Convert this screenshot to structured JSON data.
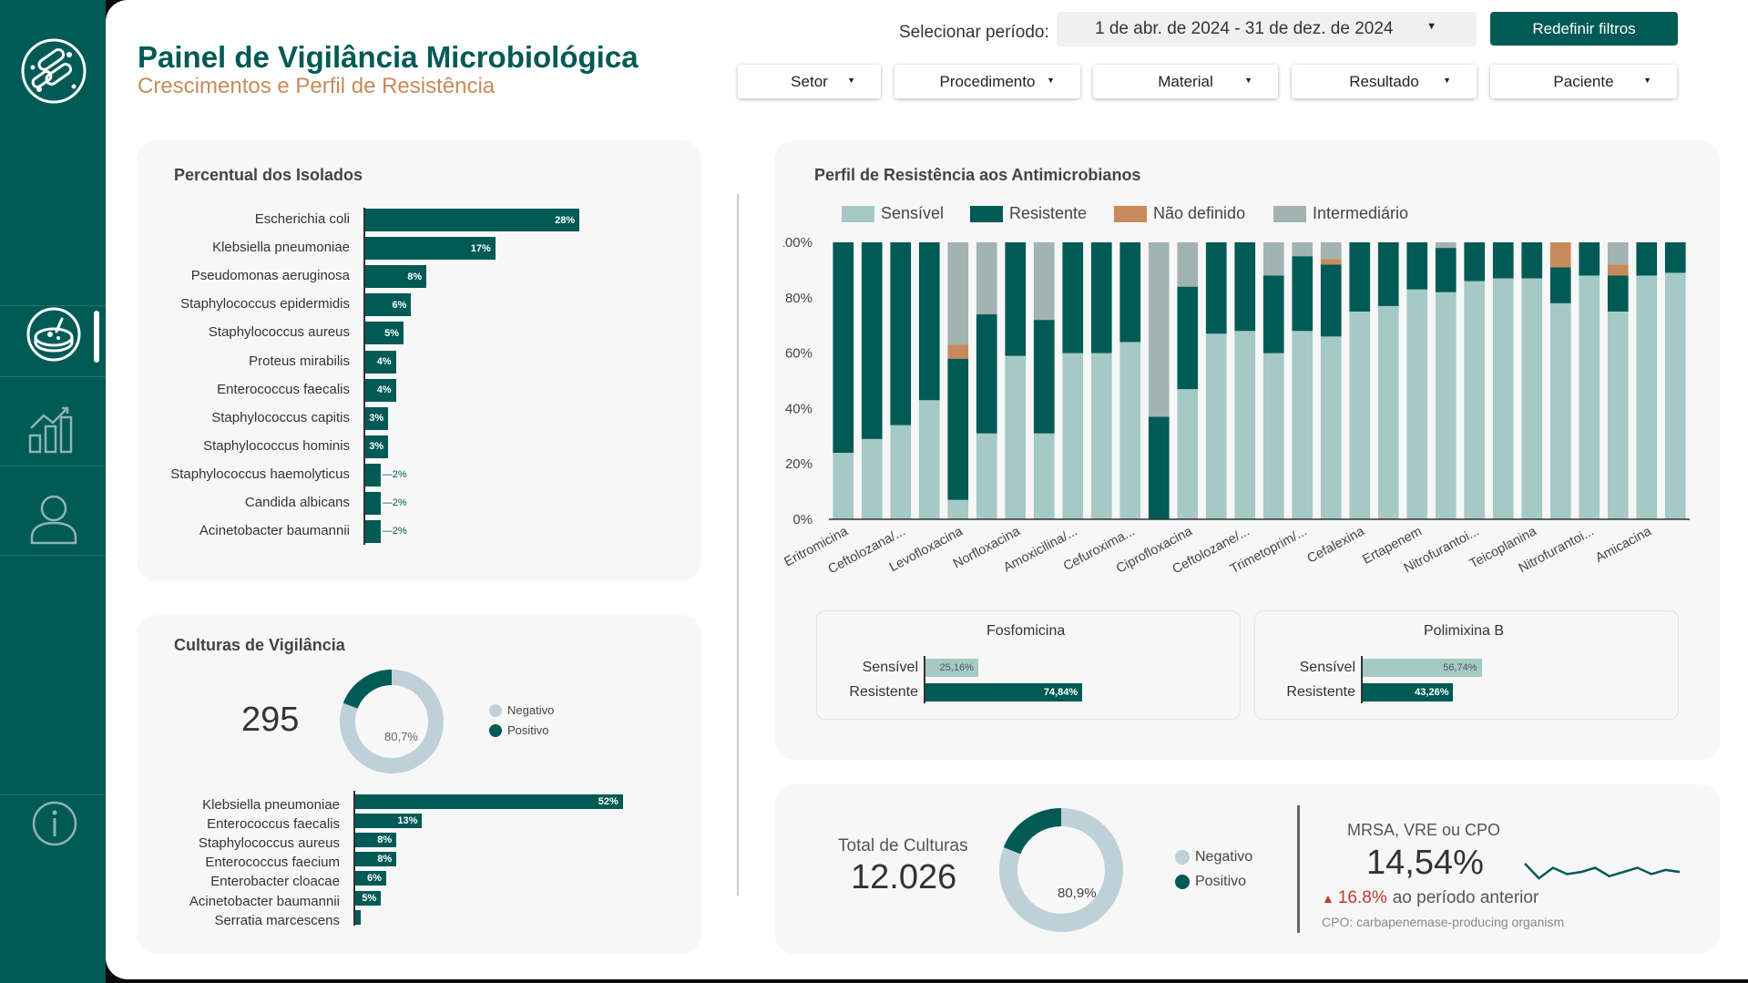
{
  "header": {
    "title": "Painel de Vigilância Microbiológica",
    "subtitle": "Crescimentos e Perfil de Resistência",
    "period_label": "Selecionar período:",
    "period_value": "1 de abr. de 2024 - 31 de dez. de 2024",
    "reset_label": "Redefinir filtros",
    "filters": [
      "Setor",
      "Procedimento",
      "Material",
      "Resultado",
      "Paciente"
    ]
  },
  "sidebar": {
    "icons": [
      "bacteria-logo-icon",
      "petri-dish-icon",
      "bar-chart-icon",
      "user-icon",
      "info-icon"
    ],
    "active": "petri-dish-icon"
  },
  "colors": {
    "primary": "#005a55",
    "sensitive": "#a5c9c5",
    "resistant": "#005a55",
    "undefined": "#c98a5b",
    "intermediate": "#a3b3b1",
    "donut_negative": "#bfd1d8",
    "up_arrow": "#c0392b",
    "subtitle": "#c98a5b"
  },
  "isolates": {
    "title": "Percentual dos Isolados",
    "items": [
      {
        "name": "Escherichia coli",
        "pct": 28,
        "label": "28%"
      },
      {
        "name": "Klebsiella pneumoniae",
        "pct": 17,
        "label": "17%"
      },
      {
        "name": "Pseudomonas aeruginosa",
        "pct": 8,
        "label": "8%"
      },
      {
        "name": "Staphylococcus epidermidis",
        "pct": 6,
        "label": "6%"
      },
      {
        "name": "Staphylococcus aureus",
        "pct": 5,
        "label": "5%"
      },
      {
        "name": "Proteus mirabilis",
        "pct": 4,
        "label": "4%"
      },
      {
        "name": "Enterococcus faecalis",
        "pct": 4,
        "label": "4%"
      },
      {
        "name": "Staphylococcus capitis",
        "pct": 3,
        "label": "3%"
      },
      {
        "name": "Staphylococcus hominis",
        "pct": 3,
        "label": "3%"
      },
      {
        "name": "Staphylococcus haemolyticus",
        "pct": 2,
        "label": "2%"
      },
      {
        "name": "Candida albicans",
        "pct": 2,
        "label": "2%"
      },
      {
        "name": "Acinetobacter baumannii",
        "pct": 2,
        "label": "2%"
      }
    ]
  },
  "surveillance": {
    "title": "Culturas de Vigilância",
    "total": "295",
    "donut_label": "80,7%",
    "negative_pct": 80.7,
    "legend": [
      "Negativo",
      "Positivo"
    ],
    "items": [
      {
        "name": "Klebsiella pneumoniae",
        "pct": 52,
        "label": "52%"
      },
      {
        "name": "Enterococcus faecalis",
        "pct": 13,
        "label": "13%"
      },
      {
        "name": "Staphylococcus aureus",
        "pct": 8,
        "label": "8%"
      },
      {
        "name": "Enterococcus faecium",
        "pct": 8,
        "label": "8%"
      },
      {
        "name": "Enterobacter cloacae",
        "pct": 6,
        "label": "6%"
      },
      {
        "name": "Acinetobacter baumannii",
        "pct": 5,
        "label": "5%"
      },
      {
        "name": "Serratia marcescens",
        "pct": 1,
        "label": ""
      }
    ]
  },
  "resistance": {
    "title": "Perfil de Resistência aos Antimicrobianos",
    "legend": [
      "Sensível",
      "Resistente",
      "Não definido",
      "Intermediário"
    ],
    "x_tick_labels": [
      "Eritromicina",
      "Ceftolozana/...",
      "Levofloxacina",
      "Norfloxacina",
      "Amoxicilina/...",
      "Cefuroxima...",
      "Ciprofloxacina",
      "Ceftolozane/...",
      "Trimetoprim/...",
      "Cefalexina",
      "Ertapenem",
      "Nitrofurantoi...",
      "Teicoplanina",
      "Nitrofurantoi...",
      "Amicacina"
    ],
    "y_tick_labels": [
      "0%",
      "20%",
      "40%",
      "60%",
      "80%",
      "100%"
    ]
  },
  "chart_data": {
    "type": "bar",
    "stacked": true,
    "title": "Perfil de Resistência aos Antimicrobianos",
    "categories": [
      "Eritromicina",
      "",
      "Ceftolozana/...",
      "",
      "Levofloxacina",
      "",
      "Norfloxacina",
      "",
      "Amoxicilina/...",
      "",
      "Cefuroxima...",
      "",
      "Ciprofloxacina",
      "",
      "Ceftolozane/...",
      "",
      "Trimetoprim/...",
      "",
      "Cefalexina",
      "",
      "Ertapenem",
      "",
      "Nitrofurantoi...",
      "",
      "Teicoplanina",
      "",
      "Nitrofurantoi...",
      "",
      "Amicacina",
      ""
    ],
    "ylim": [
      0,
      100
    ],
    "series": [
      {
        "name": "Sensível",
        "values": [
          24,
          29,
          34,
          43,
          7,
          31,
          59,
          31,
          60,
          60,
          64,
          0,
          47,
          67,
          68,
          60,
          68,
          66,
          75,
          77,
          83,
          82,
          86,
          87,
          87,
          78,
          88,
          75,
          88,
          89
        ]
      },
      {
        "name": "Resistente",
        "values": [
          76,
          71,
          66,
          57,
          51,
          43,
          41,
          41,
          40,
          40,
          36,
          37,
          37,
          33,
          32,
          28,
          27,
          26,
          25,
          23,
          17,
          16,
          14,
          13,
          13,
          13,
          12,
          13,
          12,
          11
        ]
      },
      {
        "name": "Não definido",
        "values": [
          0,
          0,
          0,
          0,
          5,
          0,
          0,
          0,
          0,
          0,
          0,
          0,
          0,
          0,
          0,
          0,
          0,
          2,
          0,
          0,
          0,
          0,
          0,
          0,
          0,
          9,
          0,
          4,
          0,
          0
        ]
      },
      {
        "name": "Intermediário",
        "values": [
          0,
          0,
          0,
          0,
          37,
          26,
          0,
          28,
          0,
          0,
          0,
          63,
          16,
          0,
          0,
          12,
          5,
          6,
          0,
          0,
          0,
          2,
          0,
          0,
          0,
          0,
          0,
          8,
          0,
          0
        ]
      }
    ]
  },
  "fosfomicina": {
    "title": "Fosfomicina",
    "rows": [
      {
        "label": "Sensível",
        "pct": 25.16,
        "text": "25,16%"
      },
      {
        "label": "Resistente",
        "pct": 74.84,
        "text": "74,84%"
      }
    ]
  },
  "polimixina": {
    "title": "Polimixina B",
    "rows": [
      {
        "label": "Sensível",
        "pct": 56.74,
        "text": "56,74%"
      },
      {
        "label": "Resistente",
        "pct": 43.26,
        "text": "43,26%"
      }
    ]
  },
  "totals": {
    "label": "Total de Culturas",
    "value": "12.026",
    "donut_label": "80,9%",
    "negative_pct": 80.9,
    "legend": [
      "Negativo",
      "Positivo"
    ]
  },
  "mdro": {
    "label": "MRSA, VRE ou CPO",
    "value": "14,54%",
    "change": "16.8%",
    "change_suffix": "ao período anterior",
    "footnote": "CPO: carbapenemase-producing organism",
    "sparkline": [
      52,
      45,
      50,
      47,
      48,
      50,
      46,
      48,
      50,
      47,
      49,
      48
    ]
  }
}
